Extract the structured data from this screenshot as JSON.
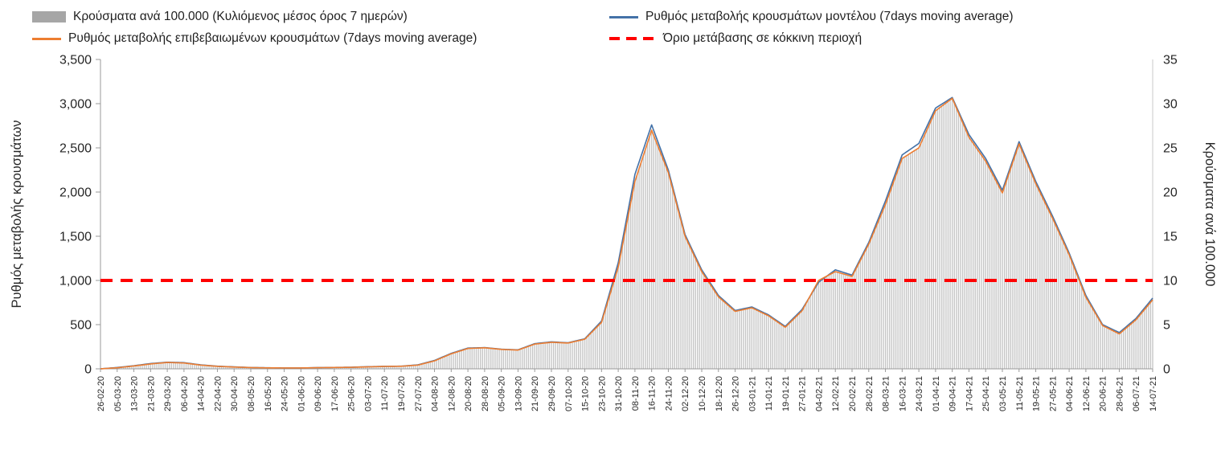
{
  "legend": {
    "items": [
      {
        "id": "bars",
        "label": "Κρούσματα ανά 100.000 (Κυλιόμενος μέσος όρος 7 ημερών)",
        "color": "#a6a6a6",
        "marker": "bar"
      },
      {
        "id": "model",
        "label": "Ρυθμός μεταβολής κρουσμάτων μοντέλου (7days moving average)",
        "color": "#4472a8",
        "marker": "line"
      },
      {
        "id": "confirmed",
        "label": "Ρυθμός μεταβολής επιβεβαιωμένων κρουσμάτων (7days moving average)",
        "color": "#ed7d31",
        "marker": "line"
      },
      {
        "id": "threshold",
        "label": "Όριο μετάβασης σε κόκκινη περιοχή",
        "color": "#ff0000",
        "marker": "dashed"
      }
    ]
  },
  "chart_data": {
    "type": "bar",
    "x": [
      "26-02-20",
      "05-03-20",
      "13-03-20",
      "21-03-20",
      "29-03-20",
      "06-04-20",
      "14-04-20",
      "22-04-20",
      "30-04-20",
      "08-05-20",
      "16-05-20",
      "24-05-20",
      "01-06-20",
      "09-06-20",
      "17-06-20",
      "25-06-20",
      "03-07-20",
      "11-07-20",
      "19-07-20",
      "27-07-20",
      "04-08-20",
      "12-08-20",
      "20-08-20",
      "28-08-20",
      "05-09-20",
      "13-09-20",
      "21-09-20",
      "29-09-20",
      "07-10-20",
      "15-10-20",
      "23-10-20",
      "31-10-20",
      "08-11-20",
      "16-11-20",
      "24-11-20",
      "02-12-20",
      "10-12-20",
      "18-12-20",
      "26-12-20",
      "03-01-21",
      "11-01-21",
      "19-01-21",
      "27-01-21",
      "04-02-21",
      "12-02-21",
      "20-02-21",
      "28-02-21",
      "08-03-21",
      "16-03-21",
      "24-03-21",
      "01-04-21",
      "09-04-21",
      "17-04-21",
      "25-04-21",
      "03-05-21",
      "11-05-21",
      "19-05-21",
      "27-05-21",
      "04-06-21",
      "12-06-21",
      "20-06-21",
      "28-06-21",
      "06-07-21",
      "14-07-21"
    ],
    "series": [
      {
        "name": "Κρούσματα ανά 100.000 (Κυλιόμενος μέσος όρος 7 ημερών)",
        "type": "bar",
        "axis": "right",
        "color": "#c6c6c6",
        "values": [
          0,
          0.1,
          0.3,
          0.55,
          0.7,
          0.66,
          0.42,
          0.28,
          0.2,
          0.14,
          0.11,
          0.1,
          0.1,
          0.13,
          0.15,
          0.17,
          0.22,
          0.27,
          0.29,
          0.42,
          0.9,
          1.7,
          2.3,
          2.4,
          2.2,
          2.1,
          2.8,
          3.0,
          2.9,
          3.3,
          5.2,
          11.5,
          21.2,
          27.0,
          22.2,
          15.0,
          11.0,
          8.2,
          6.5,
          6.9,
          6.0,
          4.7,
          6.5,
          10.0,
          11.0,
          10.4,
          14.1,
          18.6,
          23.8,
          25.0,
          29.2,
          30.6,
          26.2,
          23.5,
          19.9,
          25.4,
          21.0,
          17.0,
          12.9,
          8.1,
          4.9,
          4.0,
          5.5,
          7.8
        ]
      },
      {
        "name": "Ρυθμός μεταβολής κρουσμάτων μοντέλου (7days moving average)",
        "type": "line",
        "axis": "left",
        "color": "#4472a8",
        "values": [
          0,
          15,
          35,
          60,
          75,
          70,
          45,
          30,
          22,
          15,
          12,
          10,
          10,
          14,
          16,
          18,
          24,
          28,
          30,
          45,
          95,
          175,
          235,
          240,
          222,
          215,
          285,
          305,
          295,
          340,
          540,
          1200,
          2200,
          2760,
          2250,
          1520,
          1120,
          830,
          660,
          700,
          610,
          480,
          670,
          980,
          1120,
          1060,
          1430,
          1900,
          2420,
          2550,
          2950,
          3070,
          2650,
          2380,
          2020,
          2570,
          2120,
          1730,
          1310,
          830,
          500,
          410,
          570,
          800
        ]
      },
      {
        "name": "Ρυθμός μεταβολής επιβεβαιωμένων κρουσμάτων (7days moving average)",
        "type": "line",
        "axis": "left",
        "color": "#ed7d31",
        "values": [
          0,
          12,
          32,
          55,
          72,
          66,
          42,
          28,
          20,
          14,
          11,
          10,
          10,
          13,
          15,
          17,
          22,
          27,
          29,
          42,
          90,
          170,
          230,
          238,
          220,
          212,
          280,
          300,
          292,
          335,
          525,
          1150,
          2120,
          2700,
          2220,
          1500,
          1100,
          815,
          650,
          690,
          600,
          470,
          655,
          1000,
          1100,
          1045,
          1410,
          1860,
          2380,
          2500,
          2920,
          3060,
          2620,
          2350,
          1990,
          2545,
          2095,
          1705,
          1290,
          810,
          490,
          395,
          555,
          780
        ]
      },
      {
        "name": "Όριο μετάβασης σε κόκκινη περιοχή",
        "type": "threshold",
        "axis": "left",
        "color": "#ff0000",
        "value": 1000
      }
    ],
    "left_axis": {
      "label": "Ρυθμός μεταβολής κρουσμάτων",
      "min": 0,
      "max": 3500,
      "step": 500,
      "ticks": [
        "0",
        "500",
        "1,000",
        "1,500",
        "2,000",
        "2,500",
        "3,000",
        "3,500"
      ]
    },
    "right_axis": {
      "label": "Κρούσματα ανά 100.000",
      "min": 0,
      "max": 35,
      "step": 5,
      "ticks": [
        "0",
        "5",
        "10",
        "15",
        "20",
        "25",
        "30",
        "35"
      ]
    },
    "grid": false,
    "legend_position": "top"
  }
}
